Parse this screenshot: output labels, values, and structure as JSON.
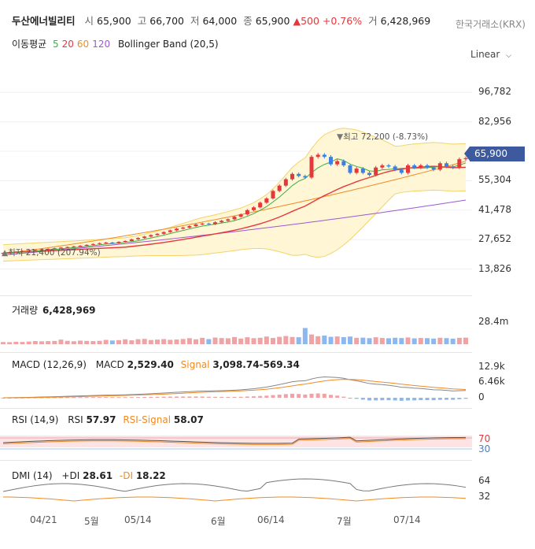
{
  "header": {
    "name": "두산에너빌리티",
    "open_label": "시",
    "open": "65,900",
    "high_label": "고",
    "high": "66,700",
    "low_label": "저",
    "low": "64,000",
    "close_label": "종",
    "close": "65,900",
    "change": "500",
    "change_pct": "+0.76%",
    "volume_label": "거",
    "volume": "6,428,969",
    "exchange": "한국거래소(KRX)"
  },
  "legend": {
    "ma_label": "이동평균",
    "ma": [
      {
        "period": "5",
        "color": "#3fae49"
      },
      {
        "period": "20",
        "color": "#e5383b"
      },
      {
        "period": "60",
        "color": "#f08a24"
      },
      {
        "period": "120",
        "color": "#9b59d0"
      }
    ],
    "bollinger": "Bollinger Band (20,5)",
    "scale": "Linear"
  },
  "panels": {
    "volume": {
      "label": "거래량",
      "value": "6,428,969",
      "tick": "28.4m"
    },
    "macd": {
      "label": "MACD (12,26,9)",
      "macd_label": "MACD",
      "macd_value": "2,529.40",
      "signal_label": "Signal",
      "signal_value": "3,098.74-569.34",
      "ticks": [
        "12.9k",
        "6.46k",
        "0"
      ]
    },
    "rsi": {
      "label": "RSI (14,9)",
      "rsi_label": "RSI",
      "rsi_value": "57.97",
      "signal_label": "RSI-Signal",
      "signal_value": "58.07",
      "ticks": [
        "70",
        "30"
      ]
    },
    "dmi": {
      "label": "DMI (14)",
      "pdi_label": "+DI",
      "pdi_value": "28.61",
      "mdi_label": "-DI",
      "mdi_value": "18.22",
      "ticks": [
        "64",
        "32"
      ]
    }
  },
  "annotations": {
    "high": "최고 72,200 (-8.73%)",
    "low": "최저 21,400 (207.94%)",
    "current": "65,900"
  },
  "colors": {
    "up": "#e5383b",
    "down": "#3f7fe0",
    "band": "#fff6d6",
    "band_line": "#f2d36b"
  },
  "chart_data": {
    "type": "candlestick",
    "title": "두산에너빌리티",
    "x_labels": [
      "04/21",
      "5월",
      "05/14",
      "6월",
      "06/14",
      "7월",
      "07/14"
    ],
    "y_ticks": [
      96782,
      82956,
      69130,
      55304,
      41478,
      27652,
      13826
    ],
    "ylim": [
      10000,
      105000
    ],
    "closes": [
      21400,
      21700,
      22000,
      22300,
      22500,
      22800,
      23100,
      23300,
      23600,
      23900,
      24200,
      24500,
      24800,
      25200,
      25600,
      26000,
      26300,
      26000,
      26600,
      27000,
      27800,
      28400,
      29100,
      29800,
      30400,
      31200,
      32000,
      32800,
      33300,
      34000,
      34800,
      35200,
      34900,
      35800,
      36500,
      37200,
      38400,
      39500,
      41500,
      42800,
      45000,
      47000,
      50500,
      53000,
      56000,
      58500,
      57500,
      56800,
      66500,
      67500,
      66500,
      63000,
      64500,
      62500,
      59000,
      61000,
      59000,
      58000,
      61500,
      62500,
      62000,
      60500,
      59000,
      62500,
      61500,
      62500,
      61500,
      60500,
      63500,
      62000,
      61500,
      65400,
      65900
    ],
    "volumes": [
      2.1,
      2.0,
      2.4,
      2.2,
      2.6,
      3.1,
      2.8,
      3.0,
      3.2,
      4.5,
      3.3,
      2.9,
      3.5,
      3.2,
      3.0,
      3.3,
      4.2,
      3.6,
      4.0,
      4.8,
      3.8,
      4.9,
      5.2,
      4.1,
      4.5,
      5.0,
      4.3,
      4.6,
      5.1,
      5.9,
      4.8,
      6.2,
      5.0,
      6.5,
      6.0,
      5.8,
      7.0,
      5.5,
      6.8,
      5.9,
      6.3,
      7.5,
      6.1,
      7.2,
      8.0,
      7.1,
      6.8,
      15.8,
      9.5,
      7.8,
      8.4,
      7.2,
      7.6,
      6.9,
      7.5,
      6.2,
      6.4,
      5.9,
      6.8,
      6.1,
      5.8,
      6.3,
      6.0,
      6.6,
      5.7,
      6.1,
      5.9,
      5.5,
      6.3,
      5.9,
      5.4,
      6.2,
      6.4
    ],
    "volume_max": 28.4,
    "volume_unit": "m",
    "ma5_color": "#3fae49",
    "ma20_color": "#e5383b"
  }
}
